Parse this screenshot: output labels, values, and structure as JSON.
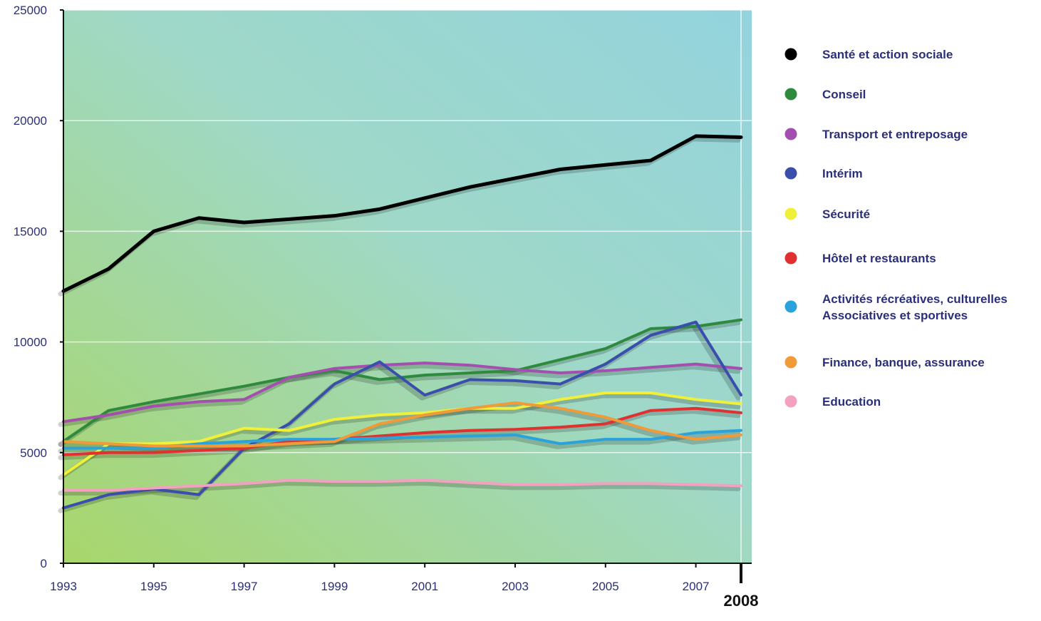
{
  "chart_data": {
    "type": "line",
    "x": [
      1993,
      1994,
      1995,
      1996,
      1997,
      1998,
      1999,
      2000,
      2001,
      2002,
      2003,
      2004,
      2005,
      2006,
      2007,
      2008
    ],
    "x_tick_labels": [
      "1993",
      "1995",
      "1997",
      "1999",
      "2001",
      "2003",
      "2005",
      "2007"
    ],
    "x_final_label": "2008",
    "ylim": [
      0,
      25000
    ],
    "y_ticks": [
      0,
      5000,
      10000,
      15000,
      20000,
      25000
    ],
    "grid": true,
    "legend_position": "right",
    "background_gradient": [
      "#a8d66a",
      "#9fd8c8",
      "#93d3dd"
    ],
    "series": [
      {
        "name": "Santé et action sociale",
        "color": "#000000",
        "values": [
          12300,
          13300,
          15000,
          15600,
          15400,
          15550,
          15700,
          16000,
          16500,
          17000,
          17400,
          17800,
          18000,
          18200,
          19300,
          19250
        ]
      },
      {
        "name": "Conseil",
        "color": "#2e8b3e",
        "values": [
          5500,
          6900,
          7300,
          7650,
          8000,
          8400,
          8700,
          8300,
          8500,
          8600,
          8700,
          9200,
          9700,
          10600,
          10700,
          11000
        ]
      },
      {
        "name": "Transport et entreposage",
        "color": "#a44fb0",
        "values": [
          6400,
          6700,
          7100,
          7300,
          7400,
          8400,
          8800,
          8950,
          9050,
          8950,
          8750,
          8600,
          8700,
          8850,
          9000,
          8800
        ]
      },
      {
        "name": "Intérim",
        "color": "#3a4eab",
        "values": [
          2500,
          3100,
          3350,
          3100,
          5200,
          6300,
          8100,
          9100,
          7600,
          8300,
          8250,
          8100,
          9000,
          10300,
          10900,
          7600
        ]
      },
      {
        "name": "Sécurité",
        "color": "#f0f03a",
        "values": [
          4000,
          5400,
          5400,
          5500,
          6100,
          6000,
          6500,
          6700,
          6800,
          7000,
          7000,
          7400,
          7700,
          7700,
          7400,
          7200
        ]
      },
      {
        "name": "Hôtel et restaurants",
        "color": "#e03030",
        "values": [
          4900,
          5000,
          5000,
          5100,
          5200,
          5500,
          5600,
          5750,
          5900,
          6000,
          6050,
          6150,
          6300,
          6900,
          7000,
          6800
        ]
      },
      {
        "name": "Activités récréatives, culturelles\nAssociatives et sportives",
        "color": "#2aa3dd",
        "values": [
          5200,
          5200,
          5200,
          5400,
          5500,
          5600,
          5600,
          5650,
          5700,
          5750,
          5800,
          5400,
          5600,
          5600,
          5900,
          6000
        ]
      },
      {
        "name": "Finance, banque, assurance",
        "color": "#f09a3a",
        "values": [
          5500,
          5400,
          5300,
          5300,
          5300,
          5400,
          5500,
          6300,
          6700,
          7000,
          7250,
          7000,
          6600,
          6000,
          5600,
          5800
        ]
      },
      {
        "name": "Education",
        "color": "#f4a0c0",
        "values": [
          3300,
          3300,
          3400,
          3500,
          3600,
          3750,
          3700,
          3700,
          3750,
          3650,
          3550,
          3550,
          3600,
          3600,
          3550,
          3500
        ]
      }
    ]
  }
}
